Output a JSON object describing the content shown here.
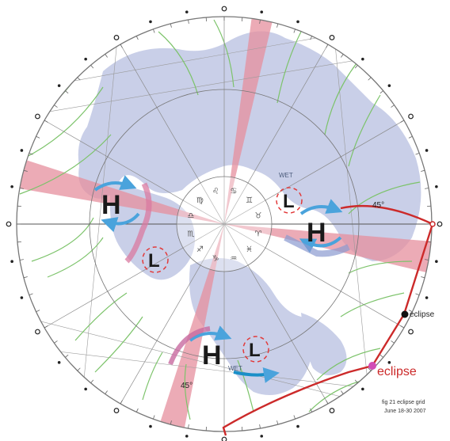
{
  "labels": {
    "pressure_high": "H",
    "pressure_low": "L",
    "wet_upper": "WET",
    "wet_lower": "WET",
    "angle_right": "45°",
    "angle_bottom": "45°",
    "eclipse_small": "eclipse",
    "eclipse_large": "eclipse",
    "caption_line1": "fig 21 eclipse grid",
    "caption_line2": "June 18-30 2007"
  },
  "zodiac_glyphs": [
    "♋",
    "♊",
    "♉",
    "♈",
    "♓",
    "♒",
    "♑",
    "♐",
    "♏",
    "♎",
    "♍",
    "♌"
  ],
  "colors": {
    "land": "#c9cfe8",
    "red_band": "#e58f9d",
    "green_lines": "#7cc36a",
    "grid_lines": "#8a8a8a",
    "eclipse_path": "#cc2a2a",
    "arrow_blue": "#4aa3dc",
    "arrow_red": "#e23a3a",
    "arrow_pink": "#d97aa0"
  }
}
